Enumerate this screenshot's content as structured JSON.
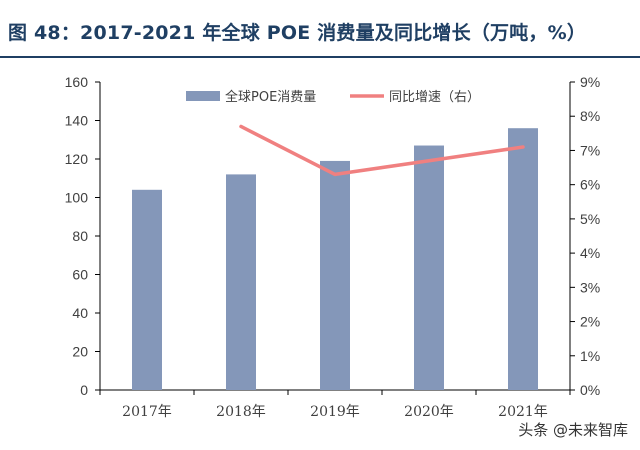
{
  "header": {
    "title": "图 48：2017-2021 年全球 POE 消费量及同比增长（万吨，%）"
  },
  "watermark": "头条 @未来智库",
  "chart_data": {
    "type": "bar",
    "categories": [
      "2017年",
      "2018年",
      "2019年",
      "2020年",
      "2021年"
    ],
    "series": [
      {
        "name": "全球POE消费量",
        "type": "bar",
        "axis": "left",
        "color": "#8497b9",
        "values": [
          104,
          112,
          119,
          127,
          136
        ]
      },
      {
        "name": "同比增速（右）",
        "type": "line",
        "axis": "right",
        "color": "#f08080",
        "values": [
          null,
          7.7,
          6.3,
          6.7,
          7.1
        ]
      }
    ],
    "y_left": {
      "min": 0,
      "max": 160,
      "step": 20,
      "ticks": [
        "0",
        "20",
        "40",
        "60",
        "80",
        "100",
        "120",
        "140",
        "160"
      ]
    },
    "y_right": {
      "min": 0,
      "max": 9,
      "step": 1,
      "ticks": [
        "0%",
        "1%",
        "2%",
        "3%",
        "4%",
        "5%",
        "6%",
        "7%",
        "8%",
        "9%"
      ]
    },
    "legend_position": "top-center",
    "grid": false
  }
}
